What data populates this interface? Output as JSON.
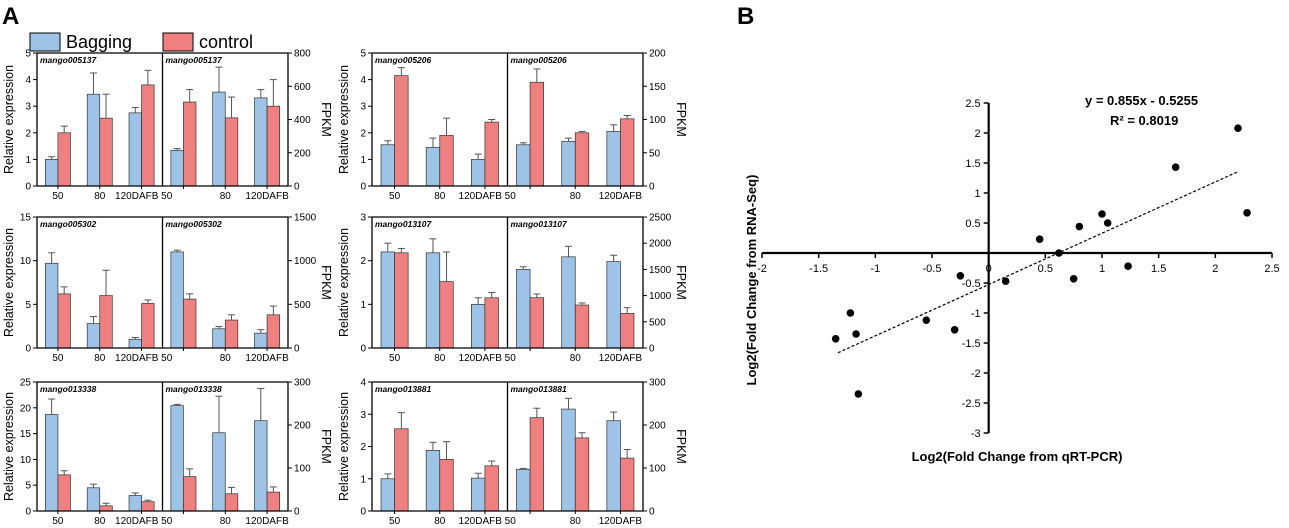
{
  "panel_labels": {
    "a": "A",
    "b": "B"
  },
  "legend": {
    "bagging": "Bagging",
    "control": "control"
  },
  "colors": {
    "bagging": "#9dc3e6",
    "control": "#f08080",
    "axis": "#000000",
    "error": "#555555",
    "point": "#000000"
  },
  "chart_data": [
    {
      "type": "bar",
      "gene": "mango005137",
      "categories": [
        "50",
        "80",
        "120DAFB"
      ],
      "ylabel_left": "Relative expression",
      "ylabel_right": "FPKM",
      "left": {
        "ylim": [
          0,
          5
        ],
        "ticks": [
          "0",
          "1",
          "2",
          "3",
          "4",
          "5"
        ],
        "bagging": [
          1.0,
          3.45,
          2.75
        ],
        "bagging_err": [
          0.1,
          0.8,
          0.2
        ],
        "control": [
          2.0,
          2.55,
          3.8
        ],
        "control_err": [
          0.25,
          0.9,
          0.55
        ]
      },
      "right": {
        "ylim": [
          0,
          800
        ],
        "ticks": [
          "0",
          "200",
          "400",
          "600",
          "800"
        ],
        "bagging": [
          215,
          565,
          530
        ],
        "bagging_err": [
          10,
          150,
          50
        ],
        "control": [
          505,
          410,
          480
        ],
        "control_err": [
          75,
          125,
          160
        ]
      }
    },
    {
      "type": "bar",
      "gene": "mango005206",
      "categories": [
        "50",
        "80",
        "120DAFB"
      ],
      "ylabel_left": "Relative expression",
      "ylabel_right": "FPKM",
      "left": {
        "ylim": [
          0,
          5
        ],
        "ticks": [
          "0",
          "1",
          "2",
          "3",
          "4",
          "5"
        ],
        "bagging": [
          1.55,
          1.45,
          1.0
        ],
        "bagging_err": [
          0.15,
          0.35,
          0.2
        ],
        "control": [
          4.15,
          1.9,
          2.4
        ],
        "control_err": [
          0.3,
          0.65,
          0.1
        ]
      },
      "right": {
        "ylim": [
          0,
          200
        ],
        "ticks": [
          "0",
          "50",
          "100",
          "150",
          "200"
        ],
        "bagging": [
          62,
          67,
          82
        ],
        "bagging_err": [
          3,
          5,
          10
        ],
        "control": [
          156,
          80,
          101
        ],
        "control_err": [
          20,
          2,
          5
        ]
      }
    },
    {
      "type": "bar",
      "gene": "mango005302",
      "categories": [
        "50",
        "80",
        "120DAFB"
      ],
      "ylabel_left": "Relative expression",
      "ylabel_right": "FPKM",
      "left": {
        "ylim": [
          0,
          15
        ],
        "ticks": [
          "0",
          "5",
          "10",
          "15"
        ],
        "bagging": [
          9.7,
          2.8,
          1.0
        ],
        "bagging_err": [
          1.2,
          0.8,
          0.2
        ],
        "control": [
          6.2,
          6.0,
          5.1
        ],
        "control_err": [
          0.8,
          2.9,
          0.4
        ]
      },
      "right": {
        "ylim": [
          0,
          1500
        ],
        "ticks": [
          "0",
          "500",
          "1000",
          "1500"
        ],
        "bagging": [
          1100,
          220,
          170
        ],
        "bagging_err": [
          20,
          25,
          40
        ],
        "control": [
          560,
          320,
          380
        ],
        "control_err": [
          60,
          60,
          100
        ]
      }
    },
    {
      "type": "bar",
      "gene": "mango013107",
      "categories": [
        "50",
        "80",
        "120DAFB"
      ],
      "ylabel_left": "Relative expression",
      "ylabel_right": "FPKM",
      "left": {
        "ylim": [
          0,
          3
        ],
        "ticks": [
          "0",
          "1",
          "2",
          "3"
        ],
        "bagging": [
          2.2,
          2.18,
          1.0
        ],
        "bagging_err": [
          0.2,
          0.32,
          0.15
        ],
        "control": [
          2.18,
          1.52,
          1.15
        ],
        "control_err": [
          0.1,
          0.68,
          0.12
        ]
      },
      "right": {
        "ylim": [
          0,
          2500
        ],
        "ticks": [
          "0",
          "500",
          "1000",
          "1500",
          "2000",
          "2500"
        ],
        "bagging": [
          1500,
          1740,
          1650
        ],
        "bagging_err": [
          50,
          200,
          120
        ],
        "control": [
          960,
          820,
          660
        ],
        "control_err": [
          70,
          40,
          110
        ]
      }
    },
    {
      "type": "bar",
      "gene": "mango013338",
      "categories": [
        "50",
        "80",
        "120DAFB"
      ],
      "ylabel_left": "Relative expression",
      "ylabel_right": "FPKM",
      "left": {
        "ylim": [
          0,
          25
        ],
        "ticks": [
          "0",
          "5",
          "10",
          "15",
          "20",
          "25"
        ],
        "bagging": [
          18.7,
          4.5,
          3.0
        ],
        "bagging_err": [
          3.0,
          0.7,
          0.5
        ],
        "control": [
          7.0,
          1.0,
          1.8
        ],
        "control_err": [
          0.8,
          0.5,
          0.3
        ]
      },
      "right": {
        "ylim": [
          0,
          300
        ],
        "ticks": [
          "0",
          "100",
          "200",
          "300"
        ],
        "bagging": [
          245,
          182,
          210
        ],
        "bagging_err": [
          3,
          85,
          75
        ],
        "control": [
          80,
          40,
          44
        ],
        "control_err": [
          18,
          15,
          12
        ]
      }
    },
    {
      "type": "bar",
      "gene": "mango013881",
      "categories": [
        "50",
        "80",
        "120DAFB"
      ],
      "ylabel_left": "Relative expression",
      "ylabel_right": "FPKM",
      "left": {
        "ylim": [
          0,
          4
        ],
        "ticks": [
          "0",
          "1",
          "2",
          "3",
          "4"
        ],
        "bagging": [
          1.0,
          1.88,
          1.02
        ],
        "bagging_err": [
          0.15,
          0.25,
          0.15
        ],
        "control": [
          2.55,
          1.6,
          1.4
        ],
        "control_err": [
          0.5,
          0.55,
          0.15
        ]
      },
      "right": {
        "ylim": [
          0,
          300
        ],
        "ticks": [
          "0",
          "100",
          "200",
          "300"
        ],
        "bagging": [
          97,
          237,
          210
        ],
        "bagging_err": [
          2,
          25,
          20
        ],
        "control": [
          217,
          170,
          123
        ],
        "control_err": [
          22,
          12,
          20
        ]
      }
    },
    {
      "type": "scatter",
      "xlabel": "Log2(Fold Change from qRT-PCR)",
      "ylabel": "Log2(Fold Change from RNA-Seq)",
      "xlim": [
        -2,
        2.5
      ],
      "ylim": [
        -3,
        2.5
      ],
      "xticks": [
        "-2",
        "-1.5",
        "-1",
        "-0.5",
        "0",
        "0.5",
        "1",
        "1.5",
        "2",
        "2.5"
      ],
      "yticks": [
        "-3",
        "-2.5",
        "-2",
        "-1.5",
        "-1",
        "-0.5",
        "0",
        "0.5",
        "1",
        "1.5",
        "2",
        "2.5"
      ],
      "equation": "y = 0.855x - 0.5255",
      "r_squared": "R² = 0.8019",
      "fit": {
        "slope": 0.855,
        "intercept": -0.5255,
        "x_range": [
          -1.33,
          2.2
        ]
      },
      "points": [
        {
          "x": -1.35,
          "y": -1.43
        },
        {
          "x": -1.22,
          "y": -1.0
        },
        {
          "x": -1.17,
          "y": -1.35
        },
        {
          "x": -1.15,
          "y": -2.35
        },
        {
          "x": -0.55,
          "y": -1.12
        },
        {
          "x": -0.3,
          "y": -1.28
        },
        {
          "x": -0.25,
          "y": -0.38
        },
        {
          "x": 0.15,
          "y": -0.47
        },
        {
          "x": 0.45,
          "y": 0.23
        },
        {
          "x": 0.62,
          "y": 0.0
        },
        {
          "x": 0.75,
          "y": -0.43
        },
        {
          "x": 0.8,
          "y": 0.44
        },
        {
          "x": 1.0,
          "y": 0.65
        },
        {
          "x": 1.05,
          "y": 0.5
        },
        {
          "x": 1.23,
          "y": -0.22
        },
        {
          "x": 1.65,
          "y": 1.43
        },
        {
          "x": 2.2,
          "y": 2.08
        },
        {
          "x": 2.28,
          "y": 0.67
        }
      ]
    }
  ]
}
